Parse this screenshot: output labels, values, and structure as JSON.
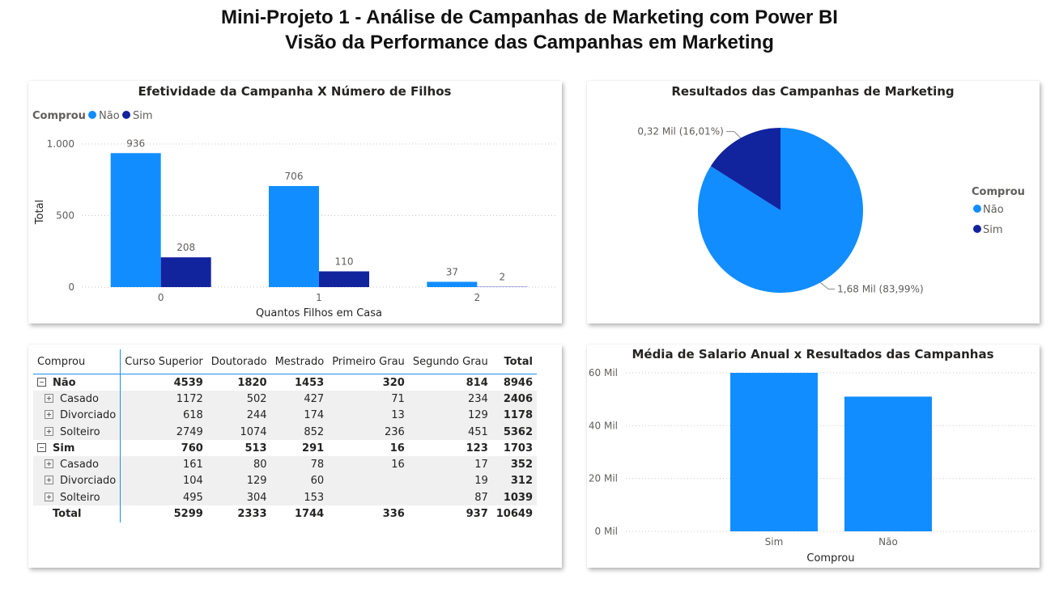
{
  "header": {
    "title_line1": "Mini-Projeto 1 -  Análise de Campanhas de Marketing com Power BI",
    "title_line2": "Visão da Performance das Campanhas em Marketing"
  },
  "colors": {
    "nao": "#118DFF",
    "sim": "#12239E"
  },
  "chart_data": [
    {
      "type": "bar",
      "title": "Efetividade da Campanha X Número de Filhos",
      "xlabel": "Quantos Filhos em Casa",
      "ylabel": "Total",
      "legend_title": "Comprou",
      "legend_position": "top-left",
      "categories": [
        "0",
        "1",
        "2"
      ],
      "series": [
        {
          "name": "Não",
          "values": [
            936,
            706,
            37
          ]
        },
        {
          "name": "Sim",
          "values": [
            208,
            110,
            2
          ]
        }
      ],
      "yticks": [
        {
          "value": 0,
          "label": "0"
        },
        {
          "value": 500,
          "label": "500"
        },
        {
          "value": 1000,
          "label": "1.000"
        }
      ],
      "ylim": [
        0,
        1000
      ],
      "grid": true
    },
    {
      "type": "pie",
      "title": "Resultados das Campanhas de Marketing",
      "legend_title": "Comprou",
      "legend_position": "right",
      "slices": [
        {
          "name": "Não",
          "value": 1.68,
          "percent": 83.99,
          "label": "1,68 Mil (83,99%)"
        },
        {
          "name": "Sim",
          "value": 0.32,
          "percent": 16.01,
          "label": "0,32 Mil (16,01%)"
        }
      ]
    },
    {
      "type": "table",
      "columns": [
        "Comprou",
        "Curso Superior",
        "Doutorado",
        "Mestrado",
        "Primeiro Grau",
        "Segundo Grau",
        "Total"
      ],
      "rows": [
        {
          "level": "group",
          "label": "Não",
          "values": [
            "4539",
            "1820",
            "1453",
            "320",
            "814",
            "8946"
          ]
        },
        {
          "level": "sub",
          "label": "Casado",
          "values": [
            "1172",
            "502",
            "427",
            "71",
            "234",
            "2406"
          ]
        },
        {
          "level": "sub",
          "label": "Divorciado",
          "values": [
            "618",
            "244",
            "174",
            "13",
            "129",
            "1178"
          ]
        },
        {
          "level": "sub",
          "label": "Solteiro",
          "values": [
            "2749",
            "1074",
            "852",
            "236",
            "451",
            "5362"
          ]
        },
        {
          "level": "group",
          "label": "Sim",
          "values": [
            "760",
            "513",
            "291",
            "16",
            "123",
            "1703"
          ]
        },
        {
          "level": "sub",
          "label": "Casado",
          "values": [
            "161",
            "80",
            "78",
            "16",
            "17",
            "352"
          ]
        },
        {
          "level": "sub",
          "label": "Divorciado",
          "values": [
            "104",
            "129",
            "60",
            "",
            "19",
            "312"
          ]
        },
        {
          "level": "sub",
          "label": "Solteiro",
          "values": [
            "495",
            "304",
            "153",
            "",
            "87",
            "1039"
          ]
        },
        {
          "level": "grand",
          "label": "Total",
          "values": [
            "5299",
            "2333",
            "1744",
            "336",
            "937",
            "10649"
          ]
        }
      ]
    },
    {
      "type": "bar",
      "title": "Média de Salario Anual x Resultados das Campanhas",
      "xlabel": "Comprou",
      "ylabel": "",
      "categories": [
        "Sim",
        "Não"
      ],
      "values": [
        60000,
        51000
      ],
      "yticks": [
        {
          "value": 0,
          "label": "0 Mil"
        },
        {
          "value": 20000,
          "label": "20 Mil"
        },
        {
          "value": 40000,
          "label": "40 Mil"
        },
        {
          "value": 60000,
          "label": "60 Mil"
        }
      ],
      "ylim": [
        0,
        60000
      ],
      "grid": true
    }
  ]
}
